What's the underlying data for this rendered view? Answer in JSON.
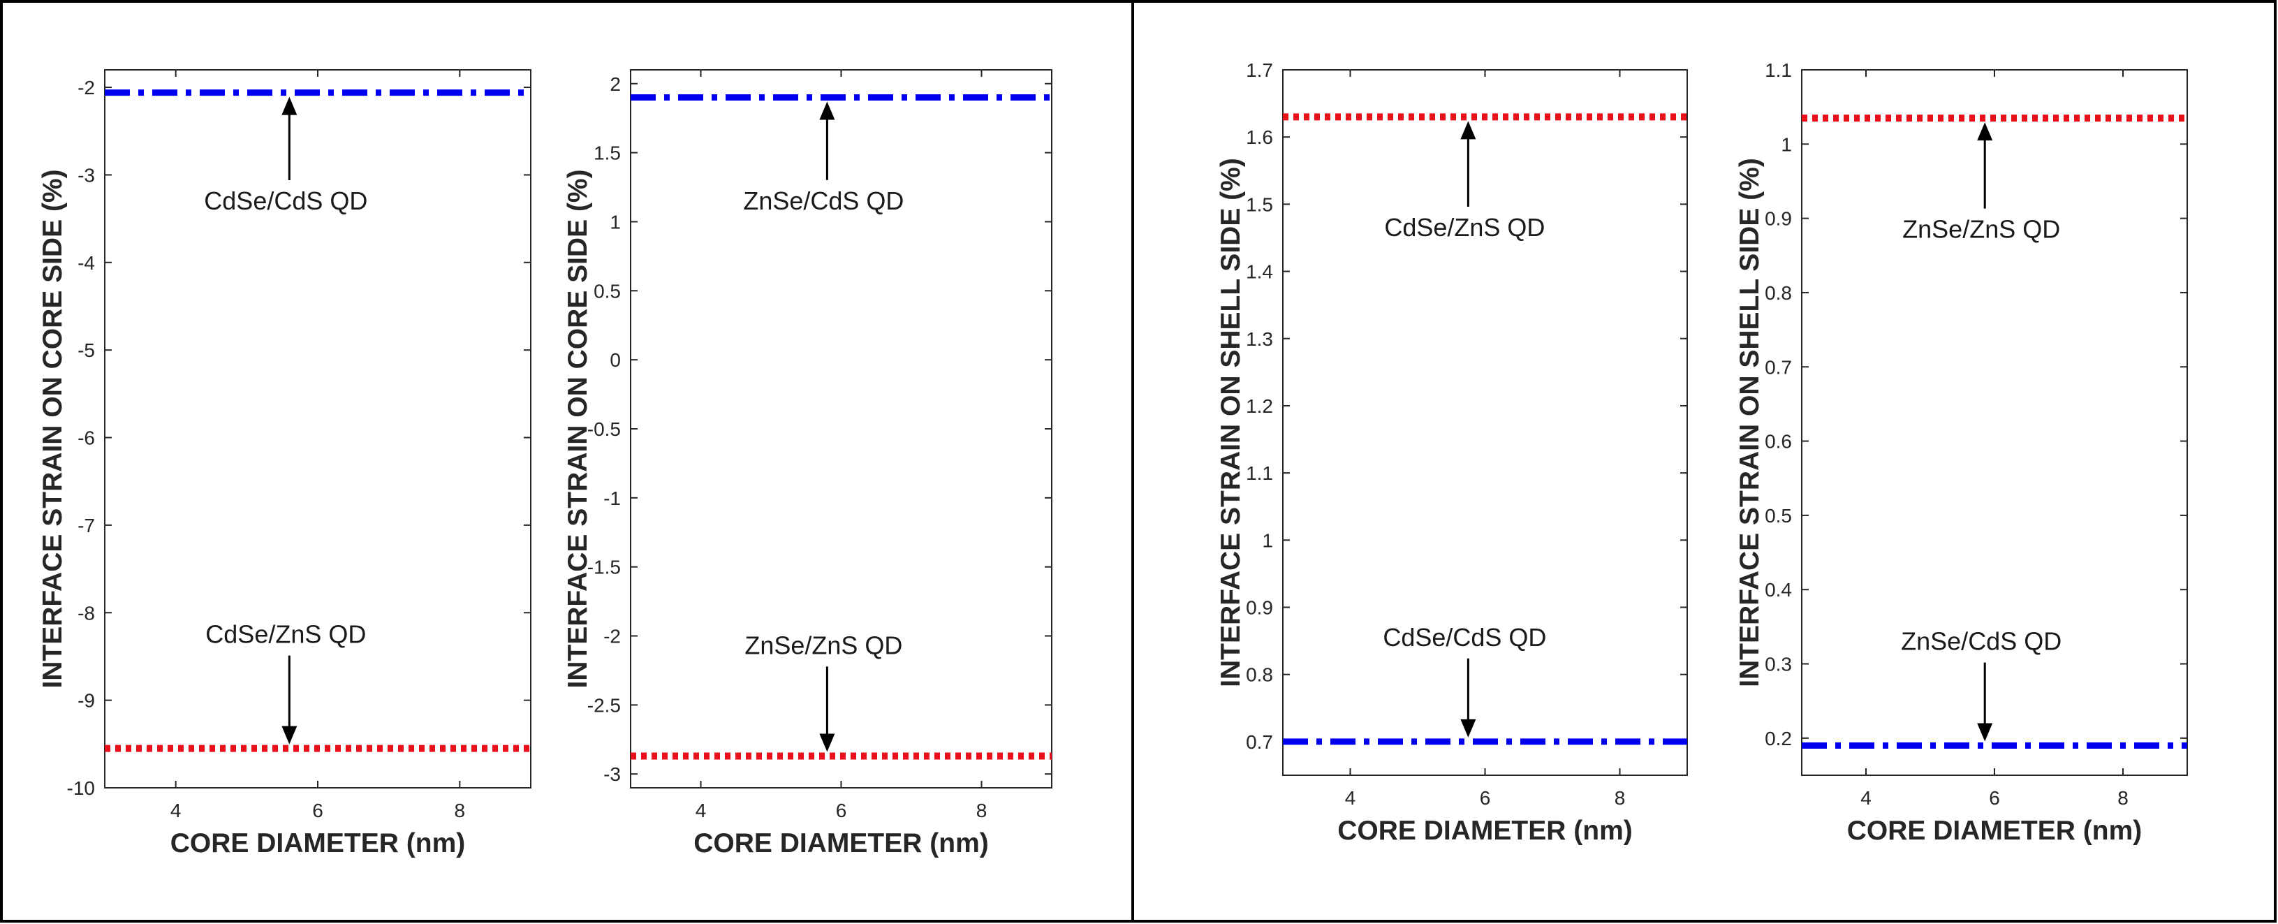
{
  "colors": {
    "blue_series": "#0000ee",
    "red_series": "#e8101a",
    "axis": "#262626",
    "frame": "#000000"
  },
  "chart_data": [
    {
      "type": "line",
      "title": "",
      "xlabel": "CORE DIAMETER (nm)",
      "ylabel": "INTERFACE STRAIN ON CORE SIDE (%)",
      "xlim": [
        3,
        9
      ],
      "ylim": [
        -10,
        -1.8
      ],
      "xticks": [
        4,
        6,
        8
      ],
      "yticks": [
        -10,
        -9,
        -8,
        -7,
        -6,
        -5,
        -4,
        -3,
        -2
      ],
      "ytick_labels": [
        "-10",
        "-9",
        "-8",
        "-7",
        "-6",
        "-5",
        "-4",
        "-3",
        "-2"
      ],
      "grid": false,
      "series": [
        {
          "name": "CdSe/CdS QD",
          "style": "dash-dot",
          "color": "blue",
          "x": [
            3,
            9
          ],
          "y": [
            -2.06,
            -2.06
          ]
        },
        {
          "name": "CdSe/ZnS QD",
          "style": "dotted",
          "color": "red",
          "x": [
            3,
            9
          ],
          "y": [
            -9.55,
            -9.55
          ]
        }
      ],
      "annotations": [
        {
          "text": "CdSe/CdS QD",
          "arrow_x": 5.6,
          "arrow_to_y": -2.06,
          "text_y": -3.3,
          "direction": "up"
        },
        {
          "text": "CdSe/ZnS QD",
          "arrow_x": 5.6,
          "arrow_to_y": -9.55,
          "text_y": -8.25,
          "direction": "down"
        }
      ]
    },
    {
      "type": "line",
      "title": "",
      "xlabel": "CORE DIAMETER (nm)",
      "ylabel": "INTERFACE STRAIN ON CORE SIDE (%)",
      "xlim": [
        3,
        9
      ],
      "ylim": [
        -3.1,
        2.1
      ],
      "xticks": [
        4,
        6,
        8
      ],
      "yticks": [
        -3,
        -2.5,
        -2,
        -1.5,
        -1,
        -0.5,
        0,
        0.5,
        1,
        1.5,
        2
      ],
      "ytick_labels": [
        "-3",
        "-2.5",
        "-2",
        "-1.5",
        "-1",
        "-0.5",
        "0",
        "0.5",
        "1",
        "1.5",
        "2"
      ],
      "grid": false,
      "series": [
        {
          "name": "ZnSe/CdS QD",
          "style": "dash-dot",
          "color": "blue",
          "x": [
            3,
            9
          ],
          "y": [
            1.9,
            1.9
          ]
        },
        {
          "name": "ZnSe/ZnS QD",
          "style": "dotted",
          "color": "red",
          "x": [
            3,
            9
          ],
          "y": [
            -2.87,
            -2.87
          ]
        }
      ],
      "annotations": [
        {
          "text": "ZnSe/CdS QD",
          "arrow_x": 5.8,
          "arrow_to_y": 1.9,
          "text_y": 1.15,
          "direction": "up"
        },
        {
          "text": "ZnSe/ZnS QD",
          "arrow_x": 5.8,
          "arrow_to_y": -2.87,
          "text_y": -2.07,
          "direction": "down"
        }
      ]
    },
    {
      "type": "line",
      "title": "",
      "xlabel": "CORE DIAMETER (nm)",
      "ylabel": "INTERFACE STRAIN ON SHELL SIDE (%)",
      "xlim": [
        3,
        9
      ],
      "ylim": [
        0.65,
        1.7
      ],
      "xticks": [
        4,
        6,
        8
      ],
      "yticks": [
        0.7,
        0.8,
        0.9,
        1.0,
        1.1,
        1.2,
        1.3,
        1.4,
        1.5,
        1.6,
        1.7
      ],
      "ytick_labels": [
        "0.7",
        "0.8",
        "0.9",
        "1",
        "1.1",
        "1.2",
        "1.3",
        "1.4",
        "1.5",
        "1.6",
        "1.7"
      ],
      "grid": false,
      "series": [
        {
          "name": "CdSe/ZnS QD",
          "style": "dotted",
          "color": "red",
          "x": [
            3,
            9
          ],
          "y": [
            1.63,
            1.63
          ]
        },
        {
          "name": "CdSe/CdS QD",
          "style": "dash-dot",
          "color": "blue",
          "x": [
            3,
            9
          ],
          "y": [
            0.7,
            0.7
          ]
        }
      ],
      "annotations": [
        {
          "text": "CdSe/ZnS QD",
          "arrow_x": 5.75,
          "arrow_to_y": 1.63,
          "text_y": 1.465,
          "direction": "up"
        },
        {
          "text": "CdSe/CdS QD",
          "arrow_x": 5.75,
          "arrow_to_y": 0.7,
          "text_y": 0.855,
          "direction": "down"
        }
      ]
    },
    {
      "type": "line",
      "title": "",
      "xlabel": "CORE DIAMETER (nm)",
      "ylabel": "INTERFACE STRAIN ON SHELL SIDE (%)",
      "xlim": [
        3,
        9
      ],
      "ylim": [
        0.15,
        1.1
      ],
      "xticks": [
        4,
        6,
        8
      ],
      "yticks": [
        0.2,
        0.3,
        0.4,
        0.5,
        0.6,
        0.7,
        0.8,
        0.9,
        1.0,
        1.1
      ],
      "ytick_labels": [
        "0.2",
        "0.3",
        "0.4",
        "0.5",
        "0.6",
        "0.7",
        "0.8",
        "0.9",
        "1",
        "1.1"
      ],
      "grid": false,
      "series": [
        {
          "name": "ZnSe/ZnS QD",
          "style": "dotted",
          "color": "red",
          "x": [
            3,
            9
          ],
          "y": [
            1.035,
            1.035
          ]
        },
        {
          "name": "ZnSe/CdS QD",
          "style": "dash-dot",
          "color": "blue",
          "x": [
            3,
            9
          ],
          "y": [
            0.19,
            0.19
          ]
        }
      ],
      "annotations": [
        {
          "text": "ZnSe/ZnS QD",
          "arrow_x": 5.85,
          "arrow_to_y": 1.035,
          "text_y": 0.885,
          "direction": "up"
        },
        {
          "text": "ZnSe/CdS QD",
          "arrow_x": 5.85,
          "arrow_to_y": 0.19,
          "text_y": 0.33,
          "direction": "down"
        }
      ]
    }
  ]
}
